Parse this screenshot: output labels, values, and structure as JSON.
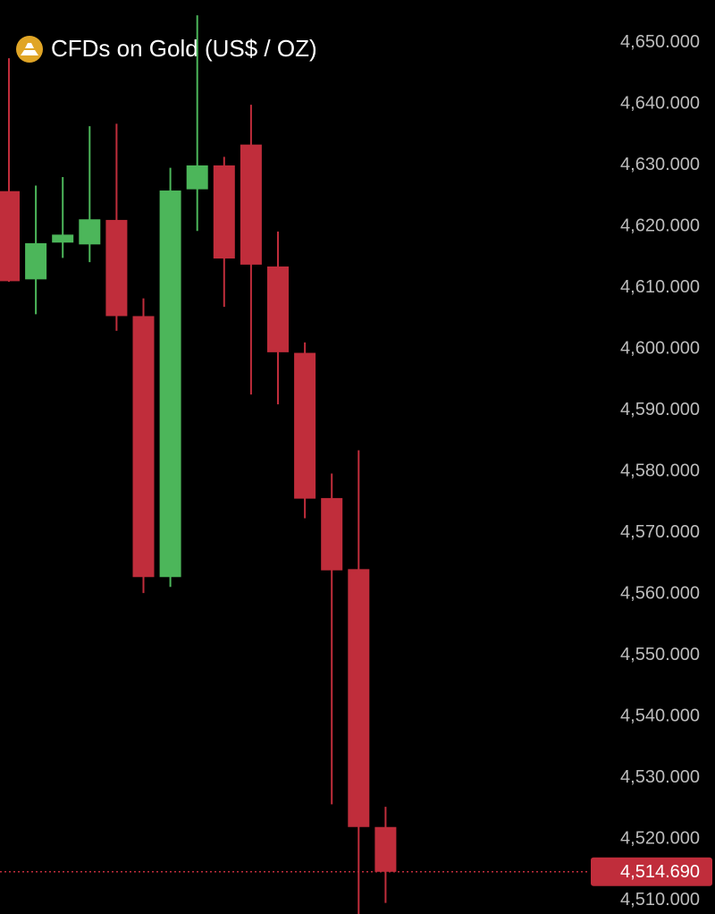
{
  "chart_data": {
    "type": "candlestick",
    "title": "CFDs on Gold (US$ / OZ)",
    "up_color": "#4cb65a",
    "down_color": "#c02d3b",
    "candles": [
      {
        "open": 4625.8,
        "high": 4647.5,
        "low": 4611.0,
        "close": 4611.1
      },
      {
        "open": 4611.4,
        "high": 4626.7,
        "low": 4605.7,
        "close": 4617.3
      },
      {
        "open": 4617.4,
        "high": 4628.1,
        "low": 4614.9,
        "close": 4618.7
      },
      {
        "open": 4617.1,
        "high": 4636.4,
        "low": 4614.2,
        "close": 4621.2
      },
      {
        "open": 4621.1,
        "high": 4636.8,
        "low": 4603.0,
        "close": 4605.4
      },
      {
        "open": 4605.4,
        "high": 4608.3,
        "low": 4560.2,
        "close": 4562.8
      },
      {
        "open": 4562.8,
        "high": 4629.6,
        "low": 4561.2,
        "close": 4625.9
      },
      {
        "open": 4626.1,
        "high": 4654.5,
        "low": 4619.3,
        "close": 4630.0
      },
      {
        "open": 4630.0,
        "high": 4631.4,
        "low": 4606.9,
        "close": 4614.8
      },
      {
        "open": 4633.4,
        "high": 4639.9,
        "low": 4592.6,
        "close": 4613.8
      },
      {
        "open": 4613.5,
        "high": 4619.2,
        "low": 4591.0,
        "close": 4599.5
      },
      {
        "open": 4599.4,
        "high": 4601.1,
        "low": 4572.4,
        "close": 4575.6
      },
      {
        "open": 4575.7,
        "high": 4579.7,
        "low": 4525.7,
        "close": 4563.9
      },
      {
        "open": 4564.1,
        "high": 4583.5,
        "low": 4507.8,
        "close": 4522.0
      },
      {
        "open": 4522.0,
        "high": 4525.3,
        "low": 4509.6,
        "close": 4514.69
      }
    ],
    "ylim": [
      4507.8,
      4657.0
    ],
    "yticks": [
      {
        "value": 4650,
        "label": "4,650.000"
      },
      {
        "value": 4640,
        "label": "4,640.000"
      },
      {
        "value": 4630,
        "label": "4,630.000"
      },
      {
        "value": 4620,
        "label": "4,620.000"
      },
      {
        "value": 4610,
        "label": "4,610.000"
      },
      {
        "value": 4600,
        "label": "4,600.000"
      },
      {
        "value": 4590,
        "label": "4,590.000"
      },
      {
        "value": 4580,
        "label": "4,580.000"
      },
      {
        "value": 4570,
        "label": "4,570.000"
      },
      {
        "value": 4560,
        "label": "4,560.000"
      },
      {
        "value": 4550,
        "label": "4,550.000"
      },
      {
        "value": 4540,
        "label": "4,540.000"
      },
      {
        "value": 4530,
        "label": "4,530.000"
      },
      {
        "value": 4520,
        "label": "4,520.000"
      },
      {
        "value": 4510,
        "label": "4,510.000"
      }
    ],
    "last_price": {
      "value": 4514.69,
      "label": "4,514.690"
    }
  }
}
